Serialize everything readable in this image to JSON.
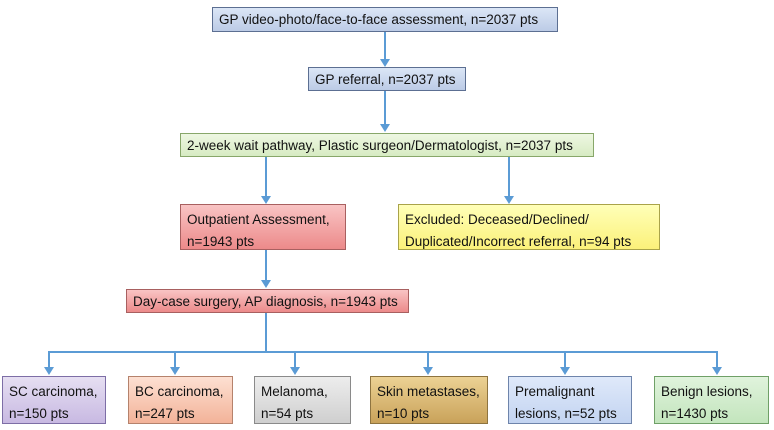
{
  "nodes": {
    "assessment": "GP video-photo/face-to-face assessment, n=2037 pts",
    "referral": "GP referral, n=2037 pts",
    "pathway": "2-week wait pathway, Plastic surgeon/Dermatologist, n=2037 pts",
    "outpatient": [
      "Outpatient Assessment,",
      "n=1943 pts"
    ],
    "excluded": [
      "Excluded: Deceased/Declined/",
      "Duplicated/Incorrect referral, n=94 pts"
    ],
    "daycase": "Day-case surgery, AP diagnosis, n=1943 pts"
  },
  "outcomes": [
    {
      "line1": "SC carcinoma,",
      "line2": "n=150 pts"
    },
    {
      "line1": "BC carcinoma,",
      "line2": "n=247 pts"
    },
    {
      "line1": "Melanoma,",
      "line2": "n=54 pts"
    },
    {
      "line1": "Skin metastases,",
      "line2": "n=10 pts"
    },
    {
      "line1": "Premalignant",
      "line2": "lesions, n=52 pts"
    },
    {
      "line1": "Benign lesions,",
      "line2": "n=1430 pts"
    }
  ],
  "colors": {
    "connector": "#5b9bd5"
  }
}
